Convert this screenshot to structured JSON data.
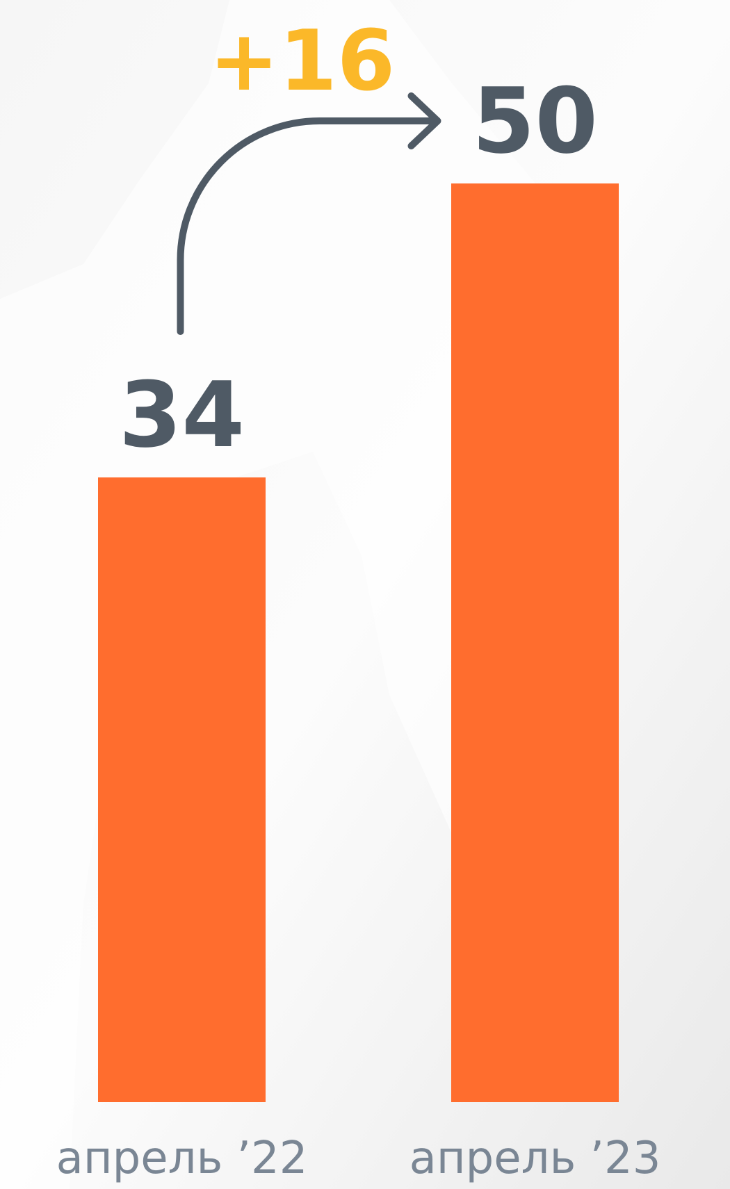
{
  "chart_data": {
    "type": "bar",
    "categories": [
      "апрель ’22",
      "апрель ’23"
    ],
    "values": [
      34,
      50
    ],
    "color": "#ff6d2e",
    "annotation": "+16"
  }
}
